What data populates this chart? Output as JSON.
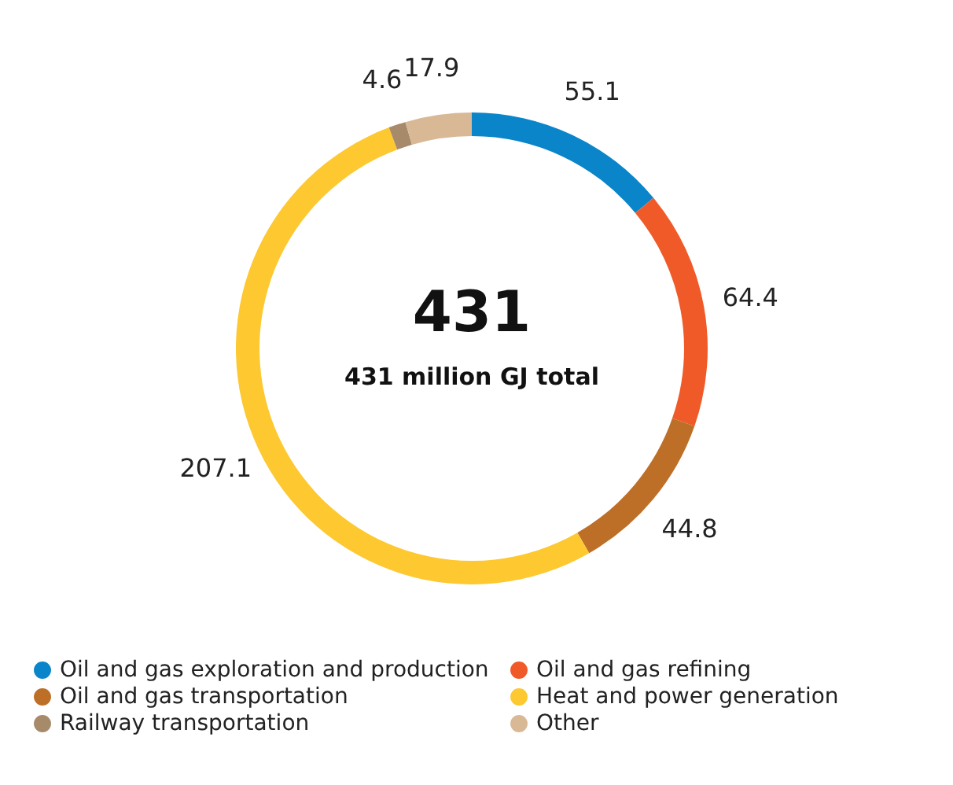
{
  "chart_data": {
    "type": "donut",
    "categories": [
      "Oil and gas exploration and production",
      "Oil and gas refining",
      "Oil and gas transportation",
      "Heat and power generation",
      "Railway transportation",
      "Other"
    ],
    "values": [
      55.1,
      64.4,
      44.8,
      207.1,
      4.6,
      17.9
    ],
    "colors": [
      "#0a85c9",
      "#f05a28",
      "#bd6f28",
      "#fdc830",
      "#a68a6a",
      "#d9b895"
    ],
    "data_labels": true,
    "annotations": [
      "431",
      "431 million GJ total"
    ],
    "legend": "bottom"
  }
}
